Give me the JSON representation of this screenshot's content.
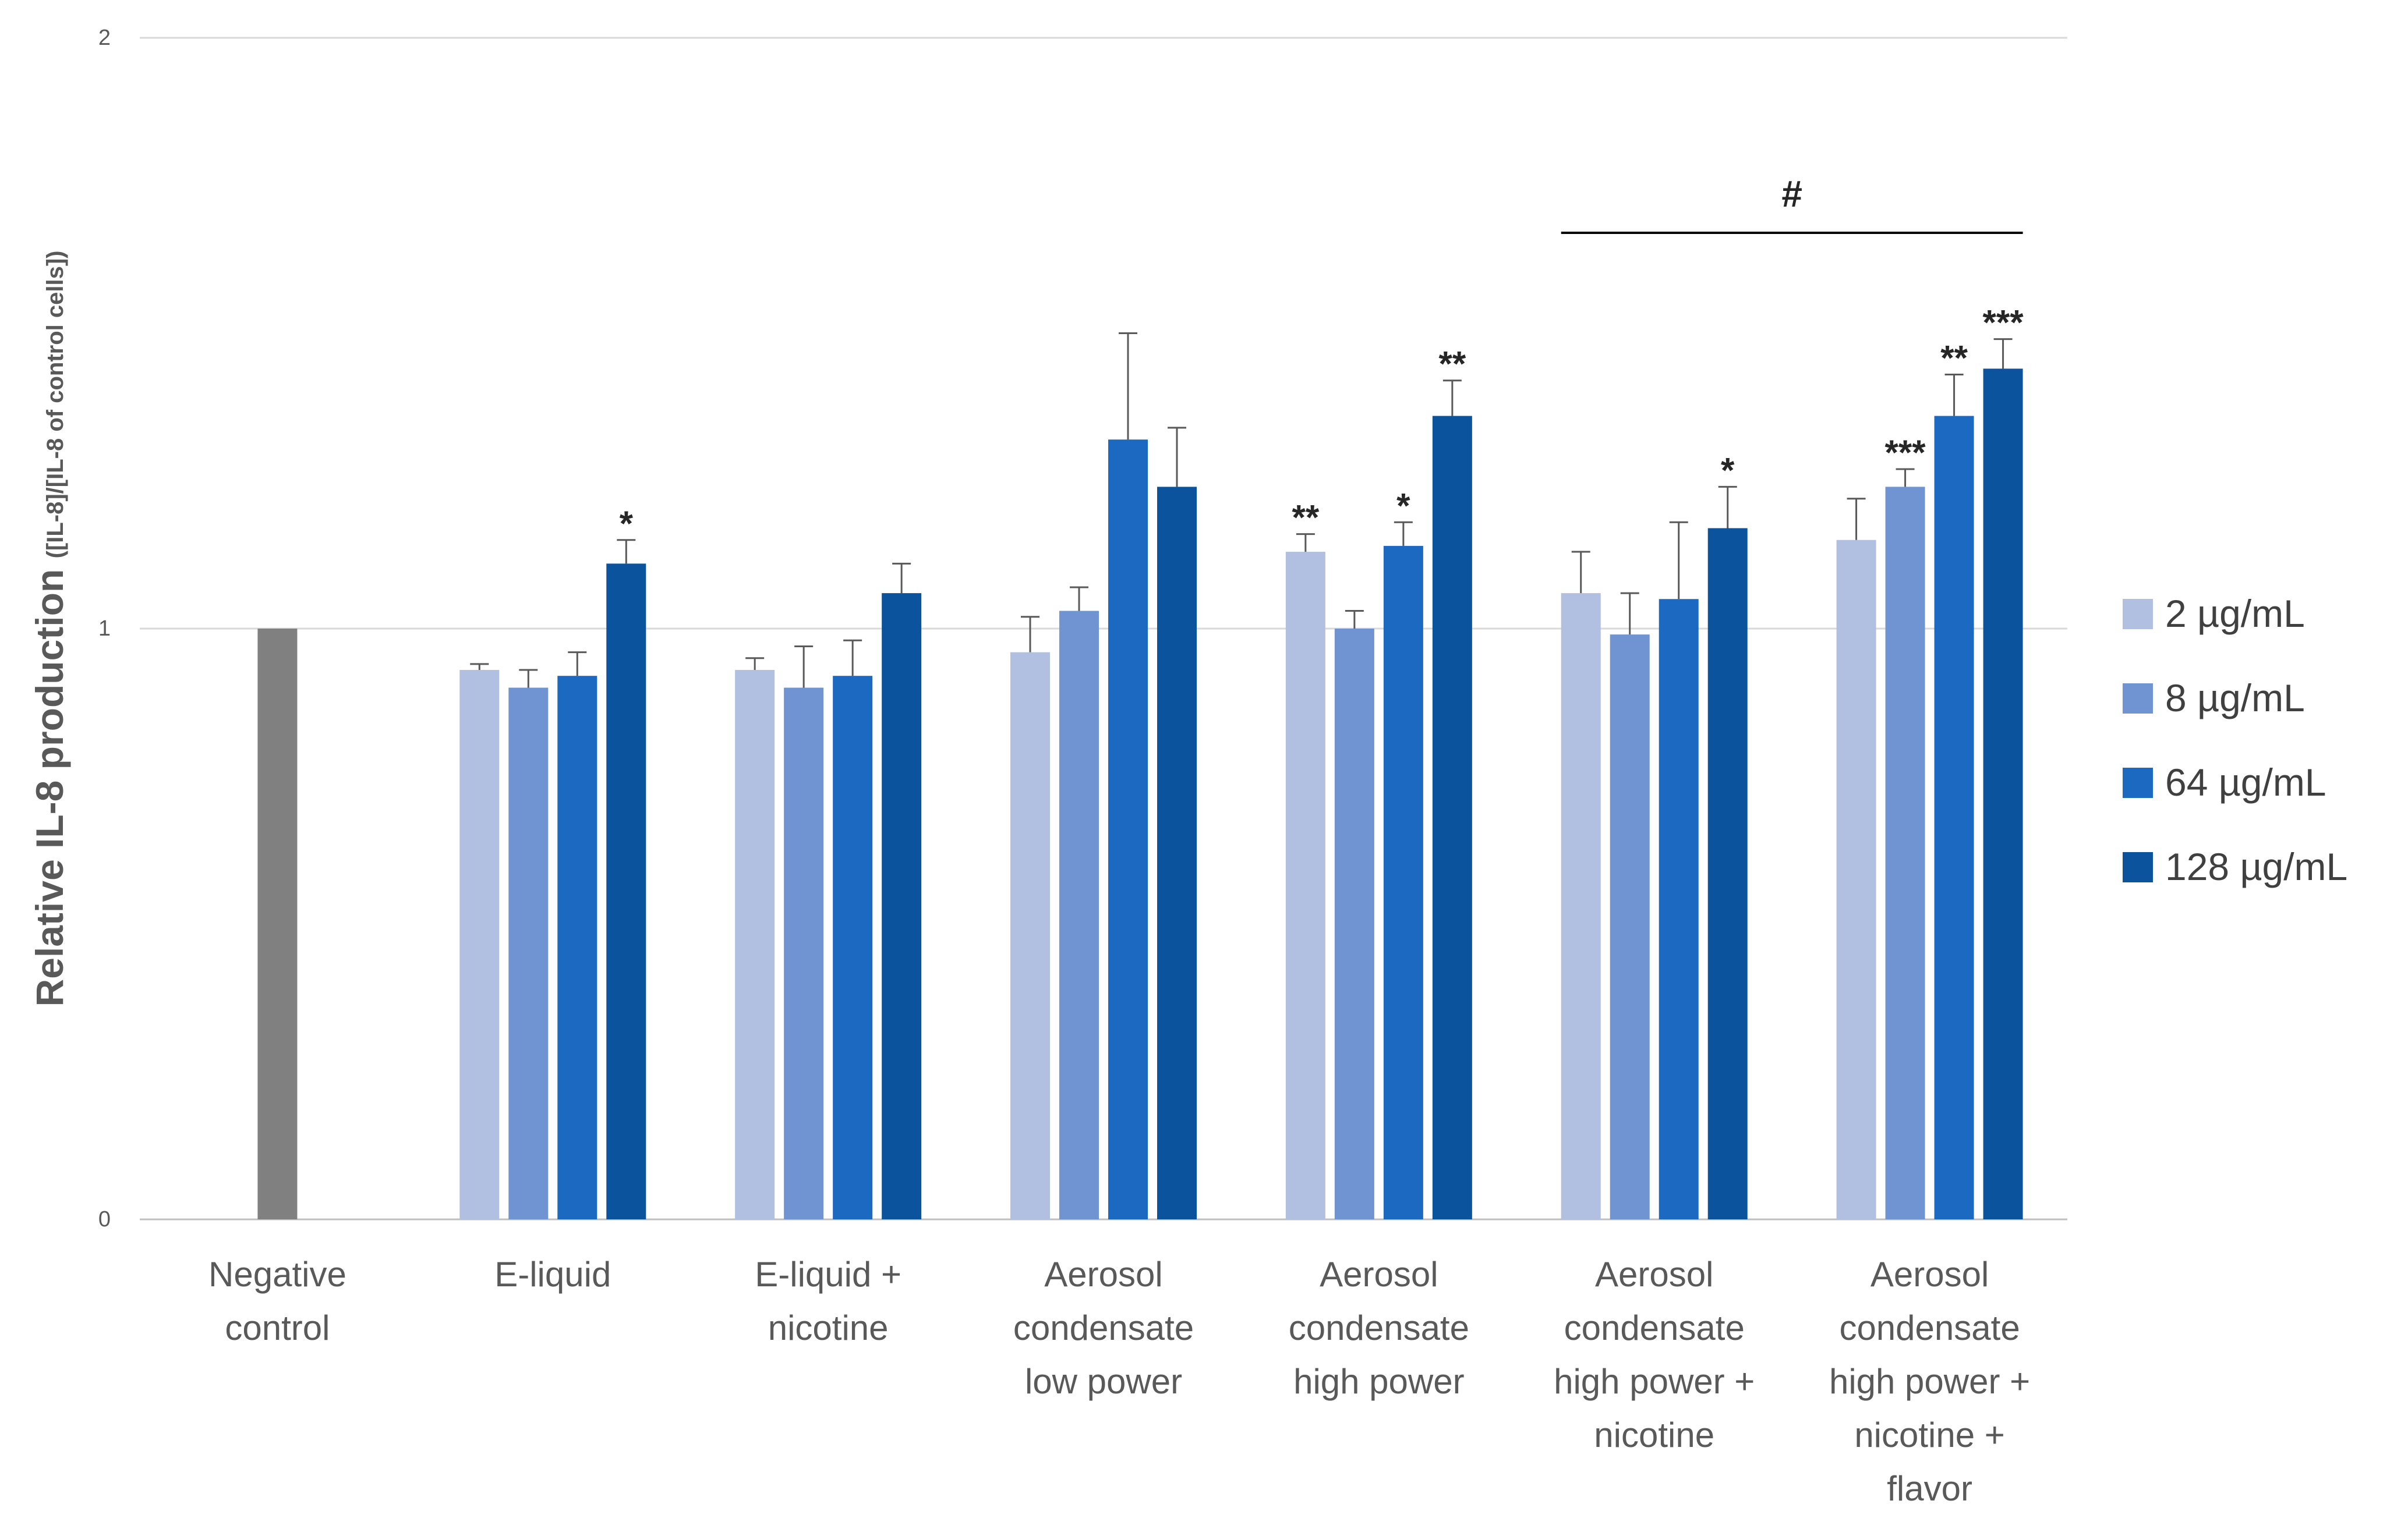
{
  "chart_data": {
    "type": "bar",
    "title": "",
    "ylabel": "Relative IL-8 production",
    "ylabel_sub": "([IL-8]/[IL-8 of control cells])",
    "ylim": [
      0,
      2
    ],
    "yticks": [
      "0",
      "1",
      "2"
    ],
    "grid": true,
    "legend_position": "right",
    "categories": [
      [
        "Negative",
        "control"
      ],
      [
        "E-liquid"
      ],
      [
        "E-liquid +",
        "nicotine"
      ],
      [
        "Aerosol",
        "condensate",
        "low power"
      ],
      [
        "Aerosol",
        "condensate",
        "high power"
      ],
      [
        "Aerosol",
        "condensate",
        "high power +",
        "nicotine"
      ],
      [
        "Aerosol",
        "condensate",
        "high power +",
        "nicotine +",
        "flavor"
      ]
    ],
    "control": {
      "value": 1.0,
      "color": "#808080"
    },
    "series": [
      {
        "name": "2 µg/mL",
        "color": "#b1c0e1",
        "values": [
          null,
          0.93,
          0.93,
          0.96,
          1.13,
          1.06,
          1.15
        ],
        "errors": [
          null,
          0.01,
          0.02,
          0.06,
          0.03,
          0.07,
          0.07
        ],
        "sig": [
          "",
          "",
          "",
          "",
          "**",
          "",
          ""
        ]
      },
      {
        "name": "8 µg/mL",
        "color": "#7093d2",
        "values": [
          null,
          0.9,
          0.9,
          1.03,
          1.0,
          0.99,
          1.24
        ],
        "errors": [
          null,
          0.03,
          0.07,
          0.04,
          0.03,
          0.07,
          0.03
        ],
        "sig": [
          "",
          "",
          "",
          "",
          "",
          "",
          "***"
        ]
      },
      {
        "name": "64 µg/mL",
        "color": "#1c69c2",
        "values": [
          null,
          0.92,
          0.92,
          1.32,
          1.14,
          1.05,
          1.36
        ],
        "errors": [
          null,
          0.04,
          0.06,
          0.18,
          0.04,
          0.13,
          0.07
        ],
        "sig": [
          "",
          "",
          "",
          "",
          "*",
          "",
          "**"
        ]
      },
      {
        "name": "128 µg/mL",
        "color": "#0b539d",
        "values": [
          null,
          1.11,
          1.06,
          1.24,
          1.36,
          1.17,
          1.44
        ],
        "errors": [
          null,
          0.04,
          0.05,
          0.1,
          0.06,
          0.07,
          0.05
        ],
        "sig": [
          "",
          "*",
          "",
          "",
          "**",
          "*",
          "***"
        ]
      }
    ],
    "bracket": {
      "label": "#",
      "from_category": 5,
      "to_category": 6
    }
  }
}
